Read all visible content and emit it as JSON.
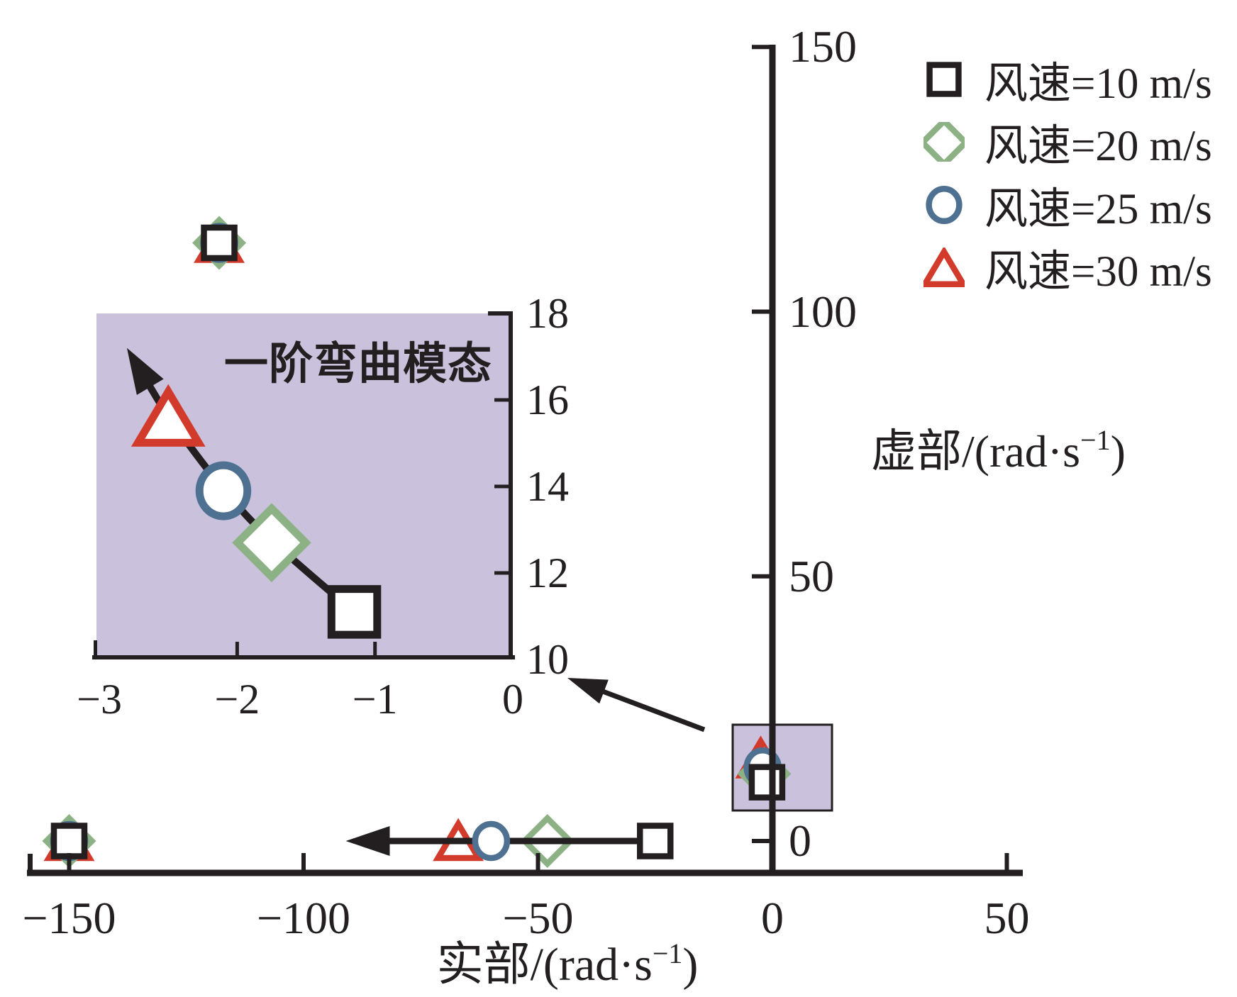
{
  "colors": {
    "black": "#231f20",
    "red": "#d23b2c",
    "green": "#8cb184",
    "blue": "#4e7191",
    "lavender": "#cac2dd",
    "marker_fill": "#ffffff"
  },
  "legend": {
    "items": [
      {
        "label": "风速=10 m/s",
        "marker": "square",
        "color_key": "black"
      },
      {
        "label": "风速=20 m/s",
        "marker": "diamond",
        "color_key": "green"
      },
      {
        "label": "风速=25 m/s",
        "marker": "circle",
        "color_key": "blue"
      },
      {
        "label": "风速=30 m/s",
        "marker": "triangle",
        "color_key": "red"
      }
    ]
  },
  "axes": {
    "x_title": {
      "base": "实部/(rad·s",
      "sup": "−1",
      "end": ")"
    },
    "y_title": {
      "base": "虚部/(rad·s",
      "sup": "−1",
      "end": ")"
    }
  },
  "chart_data": [
    {
      "id": "main",
      "type": "scatter",
      "xlabel": "实部/(rad·s⁻¹)",
      "ylabel": "虚部/(rad·s⁻¹)",
      "xlim": [
        -155,
        53
      ],
      "ylim": [
        -6,
        152
      ],
      "xticks": [
        -150,
        -100,
        -50,
        0,
        50
      ],
      "xtick_labels": [
        "−150",
        "−100",
        "−50",
        "0",
        "50"
      ],
      "yticks": [
        0,
        50,
        100,
        150
      ],
      "ytick_labels": [
        "0",
        "50",
        "100",
        "150"
      ],
      "grid": false,
      "legend_position": "top-right outside plot",
      "series": [
        {
          "name": "风速=10 m/s",
          "marker": "square",
          "color": "#231f20",
          "points": [
            [
              -150,
              0
            ],
            [
              -118,
              113
            ],
            [
              -25,
              0
            ],
            [
              -1.15,
              11.1
            ]
          ]
        },
        {
          "name": "风速=20 m/s",
          "marker": "diamond",
          "color": "#8cb184",
          "points": [
            [
              -150,
              0
            ],
            [
              -118,
              113
            ],
            [
              -48,
              0
            ],
            [
              -1.75,
              12.7
            ]
          ]
        },
        {
          "name": "风速=25 m/s",
          "marker": "circle",
          "color": "#4e7191",
          "points": [
            [
              -150,
              0
            ],
            [
              -118,
              113
            ],
            [
              -60,
              0
            ],
            [
              -2.1,
              13.9
            ]
          ]
        },
        {
          "name": "风速=30 m/s",
          "marker": "triangle",
          "color": "#d23b2c",
          "points": [
            [
              -150,
              0
            ],
            [
              -118,
              113
            ],
            [
              -67,
              0
            ],
            [
              -2.5,
              15.6
            ]
          ]
        }
      ],
      "annotations": [
        {
          "type": "arrow",
          "from": [
            -25,
            0
          ],
          "to": [
            -91,
            0
          ]
        },
        {
          "type": "zoom_source_box",
          "x0": -8.5,
          "x1": 12.7,
          "y0": 6,
          "y1": 22
        },
        {
          "type": "zoom_connector_arrow"
        }
      ]
    },
    {
      "id": "inset",
      "type": "scatter",
      "title": "一阶弯曲模态",
      "xlim": [
        -3,
        0
      ],
      "ylim": [
        10,
        18
      ],
      "xticks": [
        -3,
        -2,
        -1,
        0
      ],
      "xtick_labels": [
        "−3",
        "−2",
        "−1",
        "0"
      ],
      "yticks": [
        10,
        12,
        14,
        16,
        18
      ],
      "ytick_labels": [
        "10",
        "12",
        "14",
        "16",
        "18"
      ],
      "background": "#cac2dd",
      "curve_series": {
        "color": "#231f20",
        "points": [
          [
            -1.15,
            11.1
          ],
          [
            -1.75,
            12.7
          ],
          [
            -2.1,
            13.9
          ],
          [
            -2.5,
            15.6
          ]
        ],
        "markers": [
          "square",
          "diamond",
          "circle",
          "triangle"
        ],
        "marker_colors": [
          "#231f20",
          "#8cb184",
          "#4e7191",
          "#d23b2c"
        ],
        "arrow_to": [
          -2.8,
          17.2
        ]
      }
    }
  ]
}
